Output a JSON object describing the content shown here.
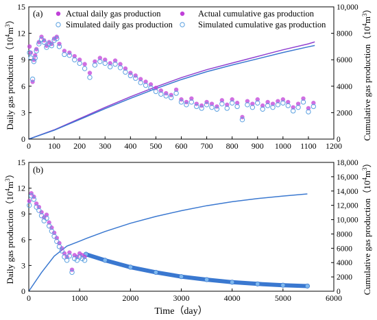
{
  "chart_data": [
    {
      "type": "scatter",
      "panel_label": "(a)",
      "xlabel": "",
      "ylabel": "Daily gas production",
      "ylabel_unit_base": "（10",
      "ylabel_unit_exp": "4",
      "ylabel_unit_mid": "m",
      "ylabel_unit_exp2": "3",
      "ylabel_unit_end": "）",
      "y2label": "Cumulative gas production",
      "y2label_unit_base": "（10",
      "y2label_unit_exp": "4",
      "y2label_unit_mid": "m",
      "y2label_unit_exp2": "3",
      "y2label_unit_end": "）",
      "xlim": [
        0,
        1200
      ],
      "ylim": [
        0,
        15
      ],
      "y2lim": [
        0,
        10000
      ],
      "x_ticks": [
        "0",
        "100",
        "200",
        "300",
        "400",
        "500",
        "600",
        "700",
        "800",
        "900",
        "1000",
        "1100",
        "1200"
      ],
      "y_ticks": [
        "0",
        "3",
        "6",
        "9",
        "12",
        "15"
      ],
      "y2_ticks": [
        "0",
        "2000",
        "4000",
        "6000",
        "8000",
        "10,000"
      ],
      "legend": {
        "placement": "top",
        "actual_daily": "Actual daily gas production",
        "actual_cum": "Actual cumulative gas production",
        "sim_daily": "Simulated daily gas production",
        "sim_cum": "Simulated cumulative gas production"
      },
      "colors": {
        "actual": "#c040d8",
        "simulated": "#5aa0e0",
        "cum_actual": "#9040d0",
        "cum_sim": "#3a78d0"
      },
      "actual_daily": [
        [
          3,
          10.5
        ],
        [
          8,
          9.8
        ],
        [
          15,
          6.5
        ],
        [
          20,
          9.0
        ],
        [
          25,
          9.5
        ],
        [
          30,
          10.2
        ],
        [
          40,
          11.0
        ],
        [
          50,
          11.6
        ],
        [
          60,
          11.2
        ],
        [
          70,
          10.6
        ],
        [
          80,
          11.0
        ],
        [
          90,
          10.8
        ],
        [
          100,
          11.4
        ],
        [
          110,
          11.6
        ],
        [
          120,
          10.8
        ],
        [
          140,
          10.0
        ],
        [
          160,
          9.8
        ],
        [
          180,
          9.4
        ],
        [
          200,
          9.0
        ],
        [
          220,
          8.5
        ],
        [
          240,
          7.5
        ],
        [
          260,
          8.8
        ],
        [
          280,
          9.2
        ],
        [
          300,
          9.0
        ],
        [
          320,
          8.6
        ],
        [
          340,
          8.9
        ],
        [
          360,
          8.5
        ],
        [
          380,
          8.0
        ],
        [
          400,
          7.5
        ],
        [
          420,
          7.2
        ],
        [
          440,
          6.8
        ],
        [
          460,
          6.5
        ],
        [
          480,
          6.2
        ],
        [
          500,
          5.8
        ],
        [
          520,
          5.5
        ],
        [
          540,
          5.2
        ],
        [
          560,
          5.0
        ],
        [
          580,
          5.6
        ],
        [
          600,
          4.5
        ],
        [
          620,
          4.2
        ],
        [
          640,
          4.6
        ],
        [
          660,
          4.0
        ],
        [
          680,
          3.8
        ],
        [
          700,
          4.2
        ],
        [
          720,
          4.0
        ],
        [
          740,
          3.7
        ],
        [
          760,
          4.4
        ],
        [
          780,
          3.9
        ],
        [
          800,
          4.5
        ],
        [
          820,
          4.1
        ],
        [
          840,
          2.5
        ],
        [
          860,
          4.3
        ],
        [
          880,
          4.0
        ],
        [
          900,
          4.5
        ],
        [
          920,
          3.8
        ],
        [
          940,
          4.2
        ],
        [
          960,
          4.0
        ],
        [
          980,
          4.3
        ],
        [
          1000,
          4.5
        ],
        [
          1020,
          4.2
        ],
        [
          1040,
          3.6
        ],
        [
          1060,
          4.0
        ],
        [
          1080,
          4.6
        ],
        [
          1100,
          3.5
        ],
        [
          1120,
          4.1
        ]
      ],
      "sim_daily": [
        [
          3,
          9.8
        ],
        [
          8,
          9.2
        ],
        [
          15,
          6.8
        ],
        [
          20,
          8.8
        ],
        [
          25,
          9.2
        ],
        [
          30,
          10.0
        ],
        [
          40,
          10.8
        ],
        [
          50,
          11.3
        ],
        [
          60,
          11.0
        ],
        [
          70,
          10.4
        ],
        [
          80,
          10.8
        ],
        [
          90,
          10.6
        ],
        [
          100,
          11.2
        ],
        [
          110,
          11.4
        ],
        [
          120,
          10.5
        ],
        [
          140,
          9.6
        ],
        [
          160,
          9.5
        ],
        [
          180,
          9.0
        ],
        [
          200,
          8.6
        ],
        [
          220,
          8.0
        ],
        [
          240,
          7.0
        ],
        [
          260,
          8.4
        ],
        [
          280,
          8.8
        ],
        [
          300,
          8.6
        ],
        [
          320,
          8.2
        ],
        [
          340,
          8.5
        ],
        [
          360,
          8.1
        ],
        [
          380,
          7.6
        ],
        [
          400,
          7.2
        ],
        [
          420,
          6.9
        ],
        [
          440,
          6.4
        ],
        [
          460,
          6.1
        ],
        [
          480,
          5.8
        ],
        [
          500,
          5.4
        ],
        [
          520,
          5.1
        ],
        [
          540,
          4.9
        ],
        [
          560,
          4.7
        ],
        [
          580,
          5.2
        ],
        [
          600,
          4.2
        ],
        [
          620,
          3.9
        ],
        [
          640,
          4.2
        ],
        [
          660,
          3.7
        ],
        [
          680,
          3.5
        ],
        [
          700,
          3.9
        ],
        [
          720,
          3.6
        ],
        [
          740,
          3.4
        ],
        [
          760,
          4.0
        ],
        [
          780,
          3.5
        ],
        [
          800,
          4.1
        ],
        [
          820,
          3.7
        ],
        [
          840,
          2.2
        ],
        [
          860,
          3.9
        ],
        [
          880,
          3.6
        ],
        [
          900,
          4.1
        ],
        [
          920,
          3.4
        ],
        [
          940,
          3.8
        ],
        [
          960,
          3.6
        ],
        [
          980,
          3.9
        ],
        [
          1000,
          4.1
        ],
        [
          1020,
          3.8
        ],
        [
          1040,
          3.2
        ],
        [
          1060,
          3.6
        ],
        [
          1080,
          4.2
        ],
        [
          1100,
          3.1
        ],
        [
          1120,
          3.7
        ]
      ],
      "actual_cum": [
        [
          0,
          0
        ],
        [
          100,
          700
        ],
        [
          200,
          1550
        ],
        [
          300,
          2400
        ],
        [
          400,
          3200
        ],
        [
          500,
          3950
        ],
        [
          600,
          4650
        ],
        [
          700,
          5250
        ],
        [
          800,
          5750
        ],
        [
          900,
          6250
        ],
        [
          1000,
          6750
        ],
        [
          1100,
          7200
        ],
        [
          1125,
          7350
        ]
      ],
      "sim_cum": [
        [
          0,
          0
        ],
        [
          100,
          670
        ],
        [
          200,
          1480
        ],
        [
          300,
          2300
        ],
        [
          400,
          3080
        ],
        [
          500,
          3820
        ],
        [
          600,
          4500
        ],
        [
          700,
          5100
        ],
        [
          800,
          5600
        ],
        [
          900,
          6070
        ],
        [
          1000,
          6550
        ],
        [
          1100,
          6980
        ],
        [
          1125,
          7080
        ]
      ]
    },
    {
      "type": "scatter",
      "panel_label": "(b)",
      "xlabel": "Time（day）",
      "ylabel": "Daily gas production",
      "ylabel_unit_base": "（10",
      "ylabel_unit_exp": "4",
      "ylabel_unit_mid": "m",
      "ylabel_unit_exp2": "3",
      "ylabel_unit_end": "）",
      "y2label": "Cumulative gas production",
      "y2label_unit_base": "（10",
      "y2label_unit_exp": "4",
      "y2label_unit_mid": "m",
      "y2label_unit_exp2": "3",
      "y2label_unit_end": "）",
      "xlim": [
        0,
        6000
      ],
      "ylim": [
        0,
        15
      ],
      "y2lim": [
        0,
        18000
      ],
      "x_ticks": [
        "0",
        "1000",
        "2000",
        "3000",
        "4000",
        "5000",
        "6000"
      ],
      "y_ticks": [
        "0",
        "3",
        "6",
        "9",
        "12",
        "15"
      ],
      "y2_ticks": [
        "0",
        "2000",
        "4000",
        "6000",
        "8000",
        "10,000",
        "12,000",
        "14,000",
        "16,000",
        "18,000"
      ],
      "colors": {
        "actual": "#c040d8",
        "simulated": "#5aa0e0",
        "cum_sim": "#3a78d0",
        "forecast": "#3a78d0"
      },
      "actual_daily": [
        [
          10,
          10.5
        ],
        [
          50,
          11.4
        ],
        [
          100,
          11.0
        ],
        [
          150,
          10.2
        ],
        [
          200,
          9.8
        ],
        [
          250,
          9.2
        ],
        [
          300,
          8.6
        ],
        [
          350,
          8.9
        ],
        [
          400,
          8.0
        ],
        [
          450,
          7.4
        ],
        [
          500,
          6.8
        ],
        [
          550,
          6.2
        ],
        [
          600,
          5.6
        ],
        [
          650,
          5.0
        ],
        [
          700,
          4.4
        ],
        [
          750,
          4.0
        ],
        [
          800,
          4.5
        ],
        [
          850,
          2.5
        ],
        [
          900,
          4.2
        ],
        [
          950,
          4.0
        ],
        [
          1000,
          4.4
        ],
        [
          1050,
          4.2
        ],
        [
          1100,
          4.0
        ]
      ],
      "sim_daily": [
        [
          10,
          10.0
        ],
        [
          50,
          11.1
        ],
        [
          100,
          10.7
        ],
        [
          150,
          9.8
        ],
        [
          200,
          9.4
        ],
        [
          250,
          8.8
        ],
        [
          300,
          8.2
        ],
        [
          350,
          8.5
        ],
        [
          400,
          7.6
        ],
        [
          450,
          7.0
        ],
        [
          500,
          6.4
        ],
        [
          550,
          5.8
        ],
        [
          600,
          5.2
        ],
        [
          650,
          4.7
        ],
        [
          700,
          4.0
        ],
        [
          750,
          3.6
        ],
        [
          800,
          4.1
        ],
        [
          850,
          2.2
        ],
        [
          900,
          3.8
        ],
        [
          950,
          3.6
        ],
        [
          1000,
          4.0
        ],
        [
          1050,
          3.8
        ],
        [
          1100,
          3.6
        ]
      ],
      "forecast_daily": [
        [
          1125,
          4.3
        ],
        [
          1500,
          3.6
        ],
        [
          2000,
          2.8
        ],
        [
          2500,
          2.2
        ],
        [
          3000,
          1.7
        ],
        [
          3500,
          1.35
        ],
        [
          4000,
          1.05
        ],
        [
          4500,
          0.85
        ],
        [
          5000,
          0.7
        ],
        [
          5480,
          0.6
        ]
      ],
      "sim_cum": [
        [
          0,
          0
        ],
        [
          250,
          2600
        ],
        [
          500,
          4900
        ],
        [
          750,
          6300
        ],
        [
          1000,
          7000
        ],
        [
          1125,
          7350
        ],
        [
          1500,
          8350
        ],
        [
          2000,
          9500
        ],
        [
          2500,
          10450
        ],
        [
          3000,
          11250
        ],
        [
          3500,
          11950
        ],
        [
          4000,
          12500
        ],
        [
          4500,
          12950
        ],
        [
          5000,
          13300
        ],
        [
          5480,
          13600
        ]
      ]
    }
  ]
}
